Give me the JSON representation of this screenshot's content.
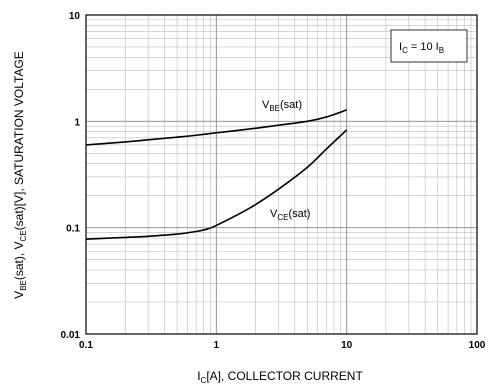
{
  "chart_data": {
    "type": "line",
    "x_scale": "log",
    "y_scale": "log",
    "xlim": [
      0.1,
      100
    ],
    "ylim": [
      0.01,
      10
    ],
    "grid": true,
    "x_ticks": [
      "0.1",
      "1",
      "10",
      "100"
    ],
    "y_ticks": [
      "0.01",
      "0.1",
      "1",
      "10"
    ],
    "xlabel": {
      "prefix": "I",
      "sub": "C",
      "rest": "[A], COLLECTOR CURRENT"
    },
    "ylabel": {
      "p1": "V",
      "s1": "BE",
      "p2": "(sat), V",
      "s2": "CE",
      "p3": "(sat)[V], SATURATION VOLTAGE"
    },
    "annotation": {
      "p1": "I",
      "s1": "C",
      "p2": " = 10 I",
      "s2": "B"
    },
    "series": [
      {
        "label_main": "V",
        "label_sub": "BE",
        "label_tail": "(sat)",
        "x": [
          0.1,
          0.2,
          0.3,
          0.5,
          0.7,
          1,
          2,
          3,
          5,
          7,
          10
        ],
        "y": [
          0.6,
          0.64,
          0.67,
          0.71,
          0.74,
          0.78,
          0.86,
          0.92,
          1.0,
          1.1,
          1.28
        ]
      },
      {
        "label_main": "V",
        "label_sub": "CE",
        "label_tail": "(sat)",
        "x": [
          0.1,
          0.2,
          0.3,
          0.5,
          0.7,
          0.85,
          1,
          1.5,
          2,
          3,
          5,
          7,
          10
        ],
        "y": [
          0.078,
          0.081,
          0.083,
          0.087,
          0.092,
          0.097,
          0.105,
          0.135,
          0.165,
          0.23,
          0.37,
          0.55,
          0.83
        ]
      }
    ]
  }
}
